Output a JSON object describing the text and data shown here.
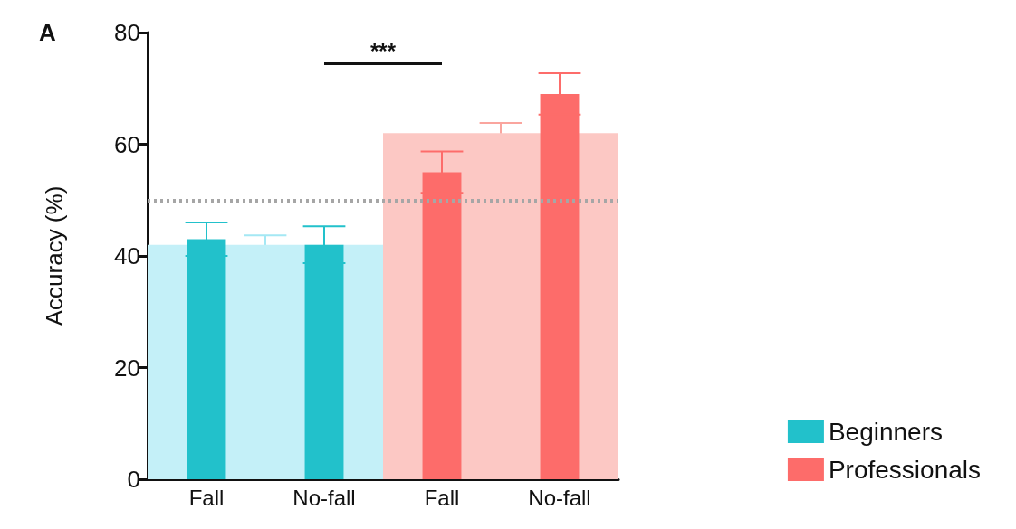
{
  "chart_data": {
    "type": "bar",
    "title": "A",
    "ylabel": "Accuracy (%)",
    "categories": [
      "Fall",
      "No-fall",
      "Fall",
      "No-fall"
    ],
    "series": [
      {
        "type": "bar",
        "colors": [
          "#c4f0f8",
          "#c4f0f8",
          "#fcc8c4",
          "#fcc8c4"
        ],
        "values": [
          42,
          42,
          62,
          62
        ],
        "errors": [
          1.7,
          null,
          1.8,
          null
        ]
      },
      {
        "name": "Beginners",
        "color": "#22c1cb",
        "values": [
          43,
          42,
          null,
          null
        ],
        "errors": [
          3,
          3.3,
          null,
          null
        ]
      },
      {
        "name": "Professionals",
        "color": "#fd6c6a",
        "values": [
          null,
          null,
          55,
          69
        ],
        "errors": [
          null,
          null,
          3.7,
          3.7
        ]
      }
    ],
    "ylim": [
      0,
      80
    ],
    "yticks": [
      0,
      20,
      40,
      60,
      80
    ],
    "grid": false,
    "legend": "bottom right",
    "ref_lines": [
      {
        "axis": "y",
        "value": 50,
        "color": "#a6a6a6",
        "line_style": "dotted"
      }
    ],
    "annotations": [
      "***"
    ]
  }
}
